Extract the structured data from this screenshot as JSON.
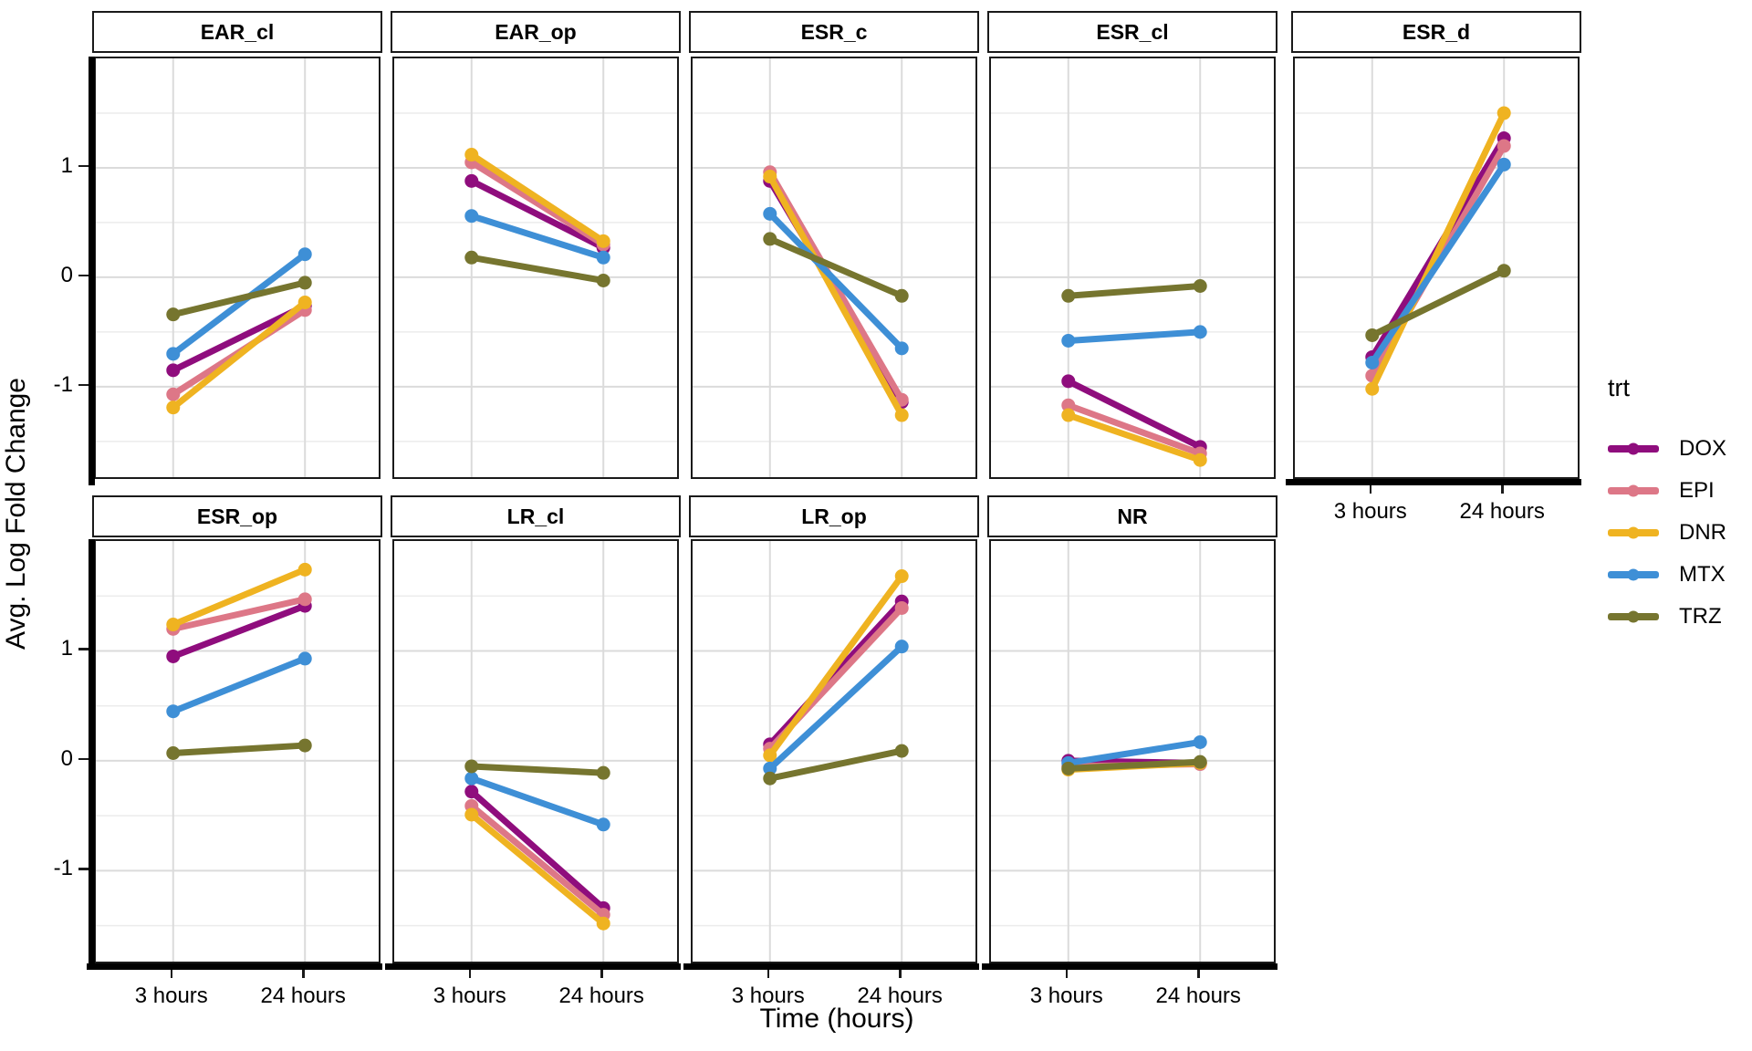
{
  "figure": {
    "y_axis_title": "Avg. Log Fold Change",
    "x_axis_title": "Time (hours)",
    "background": "#ffffff"
  },
  "legend": {
    "title": "trt",
    "items": [
      {
        "label": "DOX",
        "color": "#8F0D7D"
      },
      {
        "label": "EPI",
        "color": "#DD7787"
      },
      {
        "label": "DNR",
        "color": "#EFB321"
      },
      {
        "label": "MTX",
        "color": "#3E8FD6"
      },
      {
        "label": "TRZ",
        "color": "#76752F"
      }
    ]
  },
  "chart_data": {
    "type": "line",
    "title": "",
    "xlabel": "Time (hours)",
    "ylabel": "Avg. Log Fold Change",
    "x_categories": [
      "3 hours",
      "24 hours"
    ],
    "y_tick_labels": [
      "1",
      "0",
      "-1"
    ],
    "y_major": [
      1,
      0,
      -1
    ],
    "y_minor": [
      1.5,
      0.5,
      -0.5,
      -1.5
    ],
    "ylim": [
      -1.86,
      2.0
    ],
    "grid": "on",
    "legend_position": "right",
    "series_order": [
      "DOX",
      "EPI",
      "DNR",
      "MTX",
      "TRZ"
    ],
    "colors": {
      "DOX": "#8F0D7D",
      "EPI": "#DD7787",
      "DNR": "#EFB321",
      "MTX": "#3E8FD6",
      "TRZ": "#76752F"
    },
    "facets": [
      {
        "name": "EAR_cl",
        "row": 0,
        "col": 0,
        "values": {
          "DOX": [
            -0.85,
            -0.26
          ],
          "EPI": [
            -1.07,
            -0.3
          ],
          "DNR": [
            -1.19,
            -0.23
          ],
          "MTX": [
            -0.7,
            0.21
          ],
          "TRZ": [
            -0.34,
            -0.05
          ]
        }
      },
      {
        "name": "EAR_op",
        "row": 0,
        "col": 1,
        "values": {
          "DOX": [
            0.88,
            0.27
          ],
          "EPI": [
            1.05,
            0.3
          ],
          "DNR": [
            1.12,
            0.33
          ],
          "MTX": [
            0.56,
            0.18
          ],
          "TRZ": [
            0.18,
            -0.03
          ]
        }
      },
      {
        "name": "ESR_c",
        "row": 0,
        "col": 2,
        "values": {
          "DOX": [
            0.88,
            -1.14
          ],
          "EPI": [
            0.96,
            -1.12
          ],
          "DNR": [
            0.92,
            -1.26
          ],
          "MTX": [
            0.58,
            -0.65
          ],
          "TRZ": [
            0.35,
            -0.17
          ]
        }
      },
      {
        "name": "ESR_cl",
        "row": 0,
        "col": 3,
        "values": {
          "DOX": [
            -0.95,
            -1.55
          ],
          "EPI": [
            -1.17,
            -1.61
          ],
          "DNR": [
            -1.26,
            -1.67
          ],
          "MTX": [
            -0.58,
            -0.5
          ],
          "TRZ": [
            -0.17,
            -0.08
          ]
        }
      },
      {
        "name": "ESR_d",
        "row": 0,
        "col": 4,
        "x_labeled": true,
        "values": {
          "DOX": [
            -0.73,
            1.27
          ],
          "EPI": [
            -0.9,
            1.2
          ],
          "DNR": [
            -1.02,
            1.5
          ],
          "MTX": [
            -0.78,
            1.03
          ],
          "TRZ": [
            -0.53,
            0.06
          ]
        }
      },
      {
        "name": "ESR_op",
        "row": 1,
        "col": 0,
        "x_labeled": true,
        "values": {
          "DOX": [
            0.95,
            1.41
          ],
          "EPI": [
            1.2,
            1.47
          ],
          "DNR": [
            1.24,
            1.74
          ],
          "MTX": [
            0.45,
            0.93
          ],
          "TRZ": [
            0.07,
            0.14
          ]
        }
      },
      {
        "name": "LR_cl",
        "row": 1,
        "col": 1,
        "x_labeled": true,
        "values": {
          "DOX": [
            -0.28,
            -1.34
          ],
          "EPI": [
            -0.41,
            -1.4
          ],
          "DNR": [
            -0.49,
            -1.48
          ],
          "MTX": [
            -0.16,
            -0.58
          ],
          "TRZ": [
            -0.05,
            -0.11
          ]
        }
      },
      {
        "name": "LR_op",
        "row": 1,
        "col": 2,
        "x_labeled": true,
        "values": {
          "DOX": [
            0.15,
            1.45
          ],
          "EPI": [
            0.11,
            1.39
          ],
          "DNR": [
            0.05,
            1.68
          ],
          "MTX": [
            -0.07,
            1.04
          ],
          "TRZ": [
            -0.16,
            0.09
          ]
        }
      },
      {
        "name": "NR",
        "row": 1,
        "col": 3,
        "x_labeled": true,
        "values": {
          "DOX": [
            0.0,
            -0.02
          ],
          "EPI": [
            -0.05,
            -0.03
          ],
          "DNR": [
            -0.08,
            -0.02
          ],
          "MTX": [
            -0.02,
            0.17
          ],
          "TRZ": [
            -0.07,
            -0.01
          ]
        }
      }
    ]
  }
}
